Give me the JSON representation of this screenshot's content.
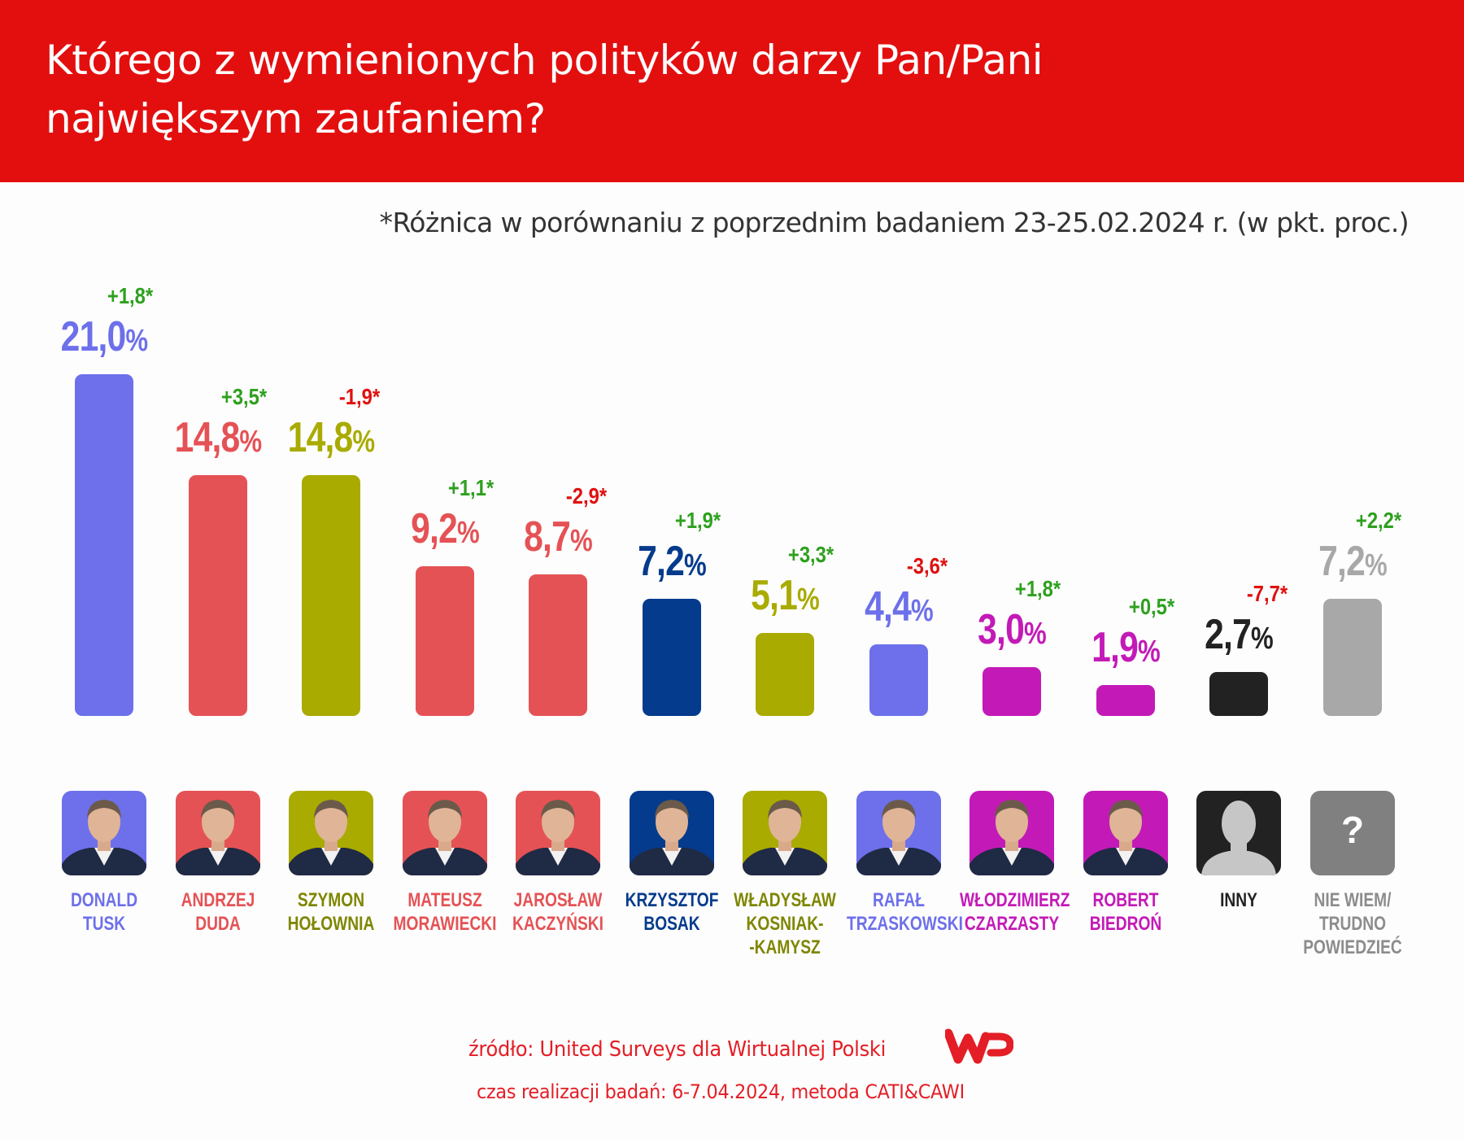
{
  "header": {
    "title_line1": "Którego z wymienionych polityków darzy Pan/Pani",
    "title_line2": "największym zaufaniem?"
  },
  "subtitle": "*Różnica w porównaniu z poprzednim badaniem 23-25.02.2024 r. (w pkt. proc.)",
  "colors": {
    "header_red": "#e30f0f",
    "positive_change": "#2ea01f",
    "negative_change": "#e01010",
    "footer_red": "#e41e26"
  },
  "chart_data": {
    "type": "bar",
    "title": "Którego z wymienionych polityków darzy Pan/Pani największym zaufaniem?",
    "subtitle": "*Różnica w porównaniu z poprzednim badaniem 23-25.02.2024 r. (w pkt. proc.)",
    "xlabel": "",
    "ylabel": "",
    "ylim": [
      0,
      21
    ],
    "grid": false,
    "unit": "%",
    "categories": [
      "DONALD TUSK",
      "ANDRZEJ DUDA",
      "SZYMON HOŁOWNIA",
      "MATEUSZ MORAWIECKI",
      "JAROSŁAW KACZYŃSKI",
      "KRZYSZTOF BOSAK",
      "WŁADYSŁAW KOSNIAK--KAMYSZ",
      "RAFAŁ TRZASKOWSKI",
      "WŁODZIMIERZ CZARZASTY",
      "ROBERT BIEDROŃ",
      "INNY",
      "NIE WIEM/ TRUDNO POWIEDZIEĆ"
    ],
    "values": [
      21.0,
      14.8,
      14.8,
      9.2,
      8.7,
      7.2,
      5.1,
      4.4,
      3.0,
      1.9,
      2.7,
      7.2
    ],
    "changes": [
      1.8,
      3.5,
      -1.9,
      1.1,
      -2.9,
      1.9,
      3.3,
      -3.6,
      1.8,
      0.5,
      -7.7,
      2.2
    ],
    "items": [
      {
        "name_lines": [
          "DONALD",
          "TUSK"
        ],
        "value_label": "21,0",
        "change_label": "+1,8*",
        "color": "#6d70ea",
        "name_color": "#6d70ea",
        "photo": "portrait"
      },
      {
        "name_lines": [
          "ANDRZEJ",
          "DUDA"
        ],
        "value_label": "14,8",
        "change_label": "+3,5*",
        "color": "#e55255",
        "name_color": "#e55255",
        "photo": "portrait"
      },
      {
        "name_lines": [
          "SZYMON",
          "HOŁOWNIA"
        ],
        "value_label": "14,8",
        "change_label": "-1,9*",
        "color": "#a9ab00",
        "name_color": "#7e8600",
        "photo": "portrait"
      },
      {
        "name_lines": [
          "MATEUSZ",
          "MORAWIECKI"
        ],
        "value_label": "9,2",
        "change_label": "+1,1*",
        "color": "#e55255",
        "name_color": "#e55255",
        "photo": "portrait"
      },
      {
        "name_lines": [
          "JAROSŁAW",
          "KACZYŃSKI"
        ],
        "value_label": "8,7",
        "change_label": "-2,9*",
        "color": "#e55255",
        "name_color": "#e55255",
        "photo": "portrait"
      },
      {
        "name_lines": [
          "KRZYSZTOF",
          "BOSAK"
        ],
        "value_label": "7,2",
        "change_label": "+1,9*",
        "color": "#043b8c",
        "name_color": "#043b8c",
        "photo": "portrait"
      },
      {
        "name_lines": [
          "WŁADYSŁAW",
          "KOSNIAK-",
          "-KAMYSZ"
        ],
        "value_label": "5,1",
        "change_label": "+3,3*",
        "color": "#a9ab00",
        "name_color": "#7e8600",
        "photo": "portrait"
      },
      {
        "name_lines": [
          "RAFAŁ",
          "TRZASKOWSKI"
        ],
        "value_label": "4,4",
        "change_label": "-3,6*",
        "color": "#6d70ea",
        "name_color": "#6d70ea",
        "photo": "portrait"
      },
      {
        "name_lines": [
          "WŁODZIMIERZ",
          "CZARZASTY"
        ],
        "value_label": "3,0",
        "change_label": "+1,8*",
        "color": "#c31ab7",
        "name_color": "#c31ab7",
        "photo": "portrait"
      },
      {
        "name_lines": [
          "ROBERT",
          "BIEDROŃ"
        ],
        "value_label": "1,9",
        "change_label": "+0,5*",
        "color": "#c31ab7",
        "name_color": "#c31ab7",
        "photo": "portrait"
      },
      {
        "name_lines": [
          "INNY"
        ],
        "value_label": "2,7",
        "change_label": "-7,7*",
        "color": "#222222",
        "name_color": "#222222",
        "photo": "silhouette"
      },
      {
        "name_lines": [
          "NIE WIEM/",
          "TRUDNO",
          "POWIEDZIEĆ"
        ],
        "value_label": "7,2",
        "change_label": "+2,2*",
        "color": "#a8a8a8",
        "name_color": "#8c8c8c",
        "photo": "question-mark"
      }
    ],
    "percent_sign": "%",
    "question_glyph": "?"
  },
  "footer": {
    "source": "źródło: United Surveys dla Wirtualnej Polski",
    "method": "czas realizacji badań: 6-7.04.2024, metoda CATI&CAWI",
    "logo": "wp-logo"
  }
}
